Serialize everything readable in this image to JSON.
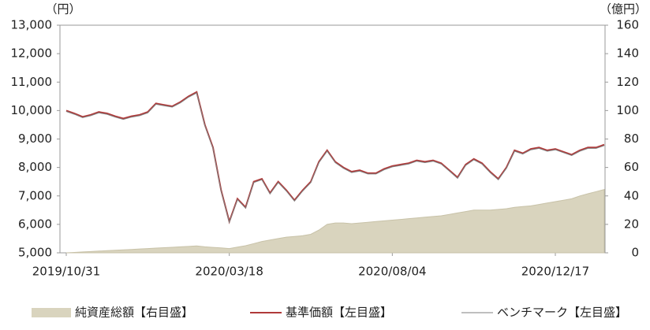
{
  "chart_data": {
    "type": "line",
    "y_unit_label": "（円）",
    "y2_unit_label": "（億円）",
    "categories": [
      "2019/10/31",
      null,
      null,
      null,
      null,
      null,
      null,
      null,
      null,
      null,
      null,
      null,
      null,
      null,
      null,
      null,
      null,
      null,
      null,
      null,
      "2020/03/18",
      null,
      null,
      null,
      null,
      null,
      null,
      null,
      null,
      null,
      null,
      null,
      null,
      null,
      null,
      null,
      null,
      null,
      null,
      null,
      "2020/08/04",
      null,
      null,
      null,
      null,
      null,
      null,
      null,
      null,
      null,
      null,
      null,
      null,
      null,
      null,
      null,
      null,
      null,
      null,
      null,
      "2020/12/17",
      null,
      null,
      null,
      null,
      null,
      null
    ],
    "series": [
      {
        "name": "純資産総額【右目盛】",
        "kind": "area",
        "axis": "y2",
        "color": "#d9d4be",
        "values": [
          0,
          0.3,
          0.6,
          0.9,
          1.2,
          1.5,
          1.8,
          2.1,
          2.4,
          2.7,
          3,
          3.3,
          3.6,
          3.9,
          4.2,
          4.5,
          4.8,
          4.2,
          3.8,
          3.5,
          3,
          4,
          5,
          6.5,
          8,
          9,
          10,
          11,
          11.5,
          12,
          13,
          16,
          20,
          21,
          21,
          20.5,
          21,
          21.5,
          22,
          22.5,
          23,
          23.5,
          24,
          24.5,
          25,
          25.5,
          26,
          27,
          28,
          29,
          30,
          30,
          30,
          30.5,
          31,
          32,
          32.5,
          33,
          34,
          35,
          36,
          37,
          38,
          40,
          41.5,
          43,
          44.5
        ]
      },
      {
        "name": "基準価額【左目盛】",
        "kind": "line",
        "axis": "y",
        "color": "#b03a3a",
        "values": [
          10000,
          9900,
          9780,
          9850,
          9950,
          9900,
          9800,
          9720,
          9800,
          9850,
          9950,
          10250,
          10200,
          10150,
          10300,
          10500,
          10650,
          9500,
          8700,
          7200,
          6100,
          6900,
          6600,
          7500,
          7600,
          7100,
          7500,
          7200,
          6850,
          7200,
          7500,
          8200,
          8600,
          8200,
          8000,
          7850,
          7900,
          7800,
          7800,
          7950,
          8050,
          8100,
          8150,
          8250,
          8200,
          8250,
          8150,
          7900,
          7650,
          8100,
          8300,
          8150,
          7850,
          7600,
          8000,
          8600,
          8500,
          8650,
          8700,
          8600,
          8650,
          8550,
          8450,
          8600,
          8700,
          8700,
          8800
        ]
      },
      {
        "name": "ベンチマーク【左目盛】",
        "kind": "line",
        "axis": "y",
        "color": "#7f7f7f",
        "values": [
          9970,
          9870,
          9750,
          9820,
          9920,
          9870,
          9770,
          9690,
          9770,
          9820,
          9920,
          10220,
          10170,
          10120,
          10270,
          10470,
          10620,
          9470,
          8670,
          7170,
          6070,
          6870,
          6570,
          7470,
          7570,
          7070,
          7470,
          7170,
          6820,
          7170,
          7470,
          8170,
          8570,
          8170,
          7970,
          7820,
          7870,
          7770,
          7770,
          7920,
          8020,
          8070,
          8120,
          8220,
          8170,
          8220,
          8120,
          7870,
          7620,
          8070,
          8270,
          8120,
          7820,
          7570,
          7970,
          8570,
          8470,
          8620,
          8670,
          8570,
          8620,
          8520,
          8420,
          8570,
          8670,
          8670,
          8770
        ]
      }
    ],
    "ylim": [
      5000,
      13000
    ],
    "yticks": [
      {
        "value": 5000,
        "label": "5,000"
      },
      {
        "value": 6000,
        "label": "6,000"
      },
      {
        "value": 7000,
        "label": "7,000"
      },
      {
        "value": 8000,
        "label": "8,000"
      },
      {
        "value": 9000,
        "label": "9,000"
      },
      {
        "value": 10000,
        "label": "10,000"
      },
      {
        "value": 11000,
        "label": "11,000"
      },
      {
        "value": 12000,
        "label": "12,000"
      },
      {
        "value": 13000,
        "label": "13,000"
      }
    ],
    "y2lim": [
      0,
      160
    ],
    "y2ticks": [
      0,
      20,
      40,
      60,
      80,
      100,
      120,
      140,
      160
    ]
  }
}
